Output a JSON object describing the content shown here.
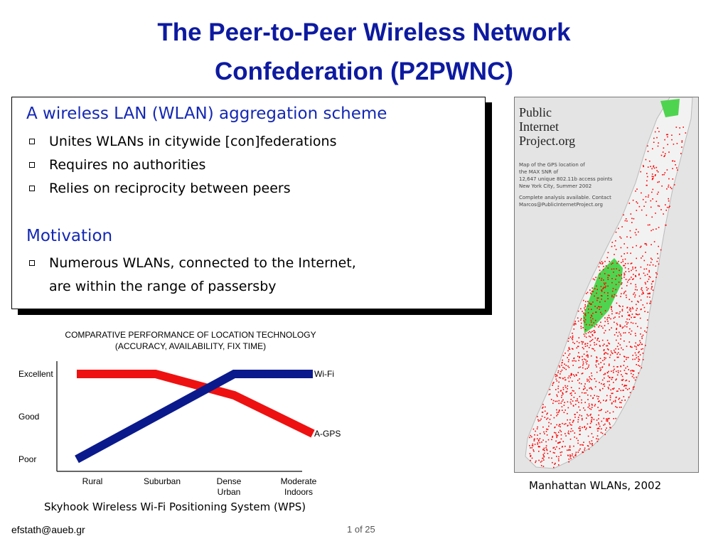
{
  "title": {
    "line1": "The Peer-to-Peer Wireless Network",
    "line2": "Confederation (P2PWNC)"
  },
  "box": {
    "section1": {
      "heading": "A wireless LAN (WLAN) aggregation scheme",
      "bullets": [
        "Unites WLANs in citywide [con]federations",
        "Requires no authorities",
        "Relies on reciprocity between peers"
      ]
    },
    "section2": {
      "heading": "Motivation",
      "bullet_line1": "Numerous WLANs, connected to the Internet,",
      "bullet_line2": "are within the range of passersby"
    }
  },
  "chart": {
    "title_line1": "COMPARATIVE PERFORMANCE OF LOCATION TECHNOLOGY",
    "title_line2": "(ACCURACY, AVAILABILITY, FIX TIME)",
    "y_levels": [
      "Excellent",
      "Good",
      "Poor"
    ],
    "categories": [
      "Rural",
      "Suburban",
      "Dense Urban",
      "Moderate Indoors"
    ],
    "cat_line1": [
      "Rural",
      "Suburban",
      "Dense",
      "Moderate"
    ],
    "cat_line2": [
      "",
      "",
      "Urban",
      "Indoors"
    ],
    "series_labels": [
      "Wi-Fi",
      "A-GPS"
    ],
    "caption": "Skyhook Wireless Wi-Fi Positioning System (WPS)"
  },
  "chart_data": {
    "type": "line",
    "title": "COMPARATIVE PERFORMANCE OF LOCATION TECHNOLOGY (ACCURACY, AVAILABILITY, FIX TIME)",
    "categories": [
      "Rural",
      "Suburban",
      "Dense Urban",
      "Moderate Indoors"
    ],
    "y_tick_labels": [
      "Poor",
      "Good",
      "Excellent"
    ],
    "ylim": [
      0,
      2
    ],
    "series": [
      {
        "name": "Wi-Fi",
        "values": [
          0,
          1,
          2,
          2
        ],
        "color": "#0a1a8c"
      },
      {
        "name": "A-GPS",
        "values": [
          2,
          2,
          1.5,
          0.6
        ],
        "color": "#ee1111"
      }
    ]
  },
  "map": {
    "title_line1": "Public",
    "title_line2": "Internet",
    "title_line3": "Project.org",
    "desc": [
      "Map of the GPS location of",
      "the MAX SNR of",
      "12,647 unique 802.11b access points",
      "New York City, Summer 2002",
      "",
      "Complete analysis available. Contact",
      "Marcos@PublicInternetProject.org"
    ],
    "caption": "Manhattan WLANs, 2002"
  },
  "footer": {
    "email": "efstath@aueb.gr",
    "page": "1 of  25"
  },
  "colors": {
    "title": "#0d1aa0",
    "heading": "#1428b4",
    "wifi": "#0a1a8c",
    "agps": "#ee1111",
    "park": "#4fd44f",
    "dots": "#ff0000"
  }
}
